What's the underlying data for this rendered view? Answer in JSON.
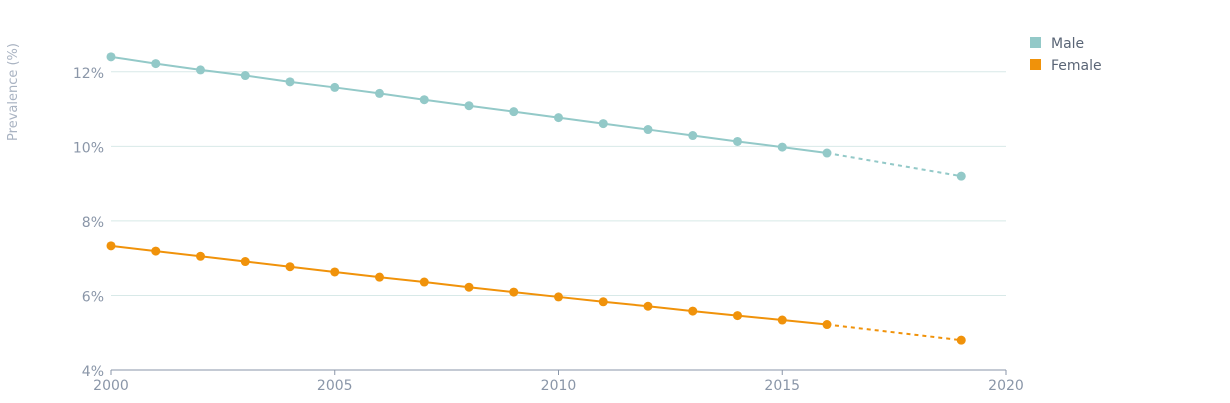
{
  "chart_data": {
    "type": "line",
    "title": "",
    "xlabel": "",
    "ylabel": "Prevalence (%)",
    "xlim": [
      2000,
      2020
    ],
    "ylim": [
      4,
      13
    ],
    "x_ticks": [
      "2000",
      "2005",
      "2010",
      "2015",
      "2020"
    ],
    "y_ticks": [
      "4%",
      "6%",
      "8%",
      "10%",
      "12%"
    ],
    "grid": "horizontal",
    "legend_position": "top-right",
    "series": [
      {
        "name": "Male",
        "color": "#93c9c8",
        "x": [
          2000,
          2001,
          2002,
          2003,
          2004,
          2005,
          2006,
          2007,
          2008,
          2009,
          2010,
          2011,
          2012,
          2013,
          2014,
          2015,
          2016,
          2019
        ],
        "values": [
          12.4,
          12.22,
          12.05,
          11.9,
          11.73,
          11.58,
          11.42,
          11.25,
          11.09,
          10.93,
          10.77,
          10.61,
          10.45,
          10.29,
          10.13,
          9.98,
          9.82,
          9.2
        ],
        "projected_from_index": 16
      },
      {
        "name": "Female",
        "color": "#f0920a",
        "x": [
          2000,
          2001,
          2002,
          2003,
          2004,
          2005,
          2006,
          2007,
          2008,
          2009,
          2010,
          2011,
          2012,
          2013,
          2014,
          2015,
          2016,
          2019
        ],
        "values": [
          7.33,
          7.19,
          7.05,
          6.91,
          6.77,
          6.63,
          6.49,
          6.36,
          6.22,
          6.09,
          5.96,
          5.83,
          5.71,
          5.58,
          5.46,
          5.34,
          5.22,
          4.8
        ],
        "projected_from_index": 16
      }
    ]
  }
}
